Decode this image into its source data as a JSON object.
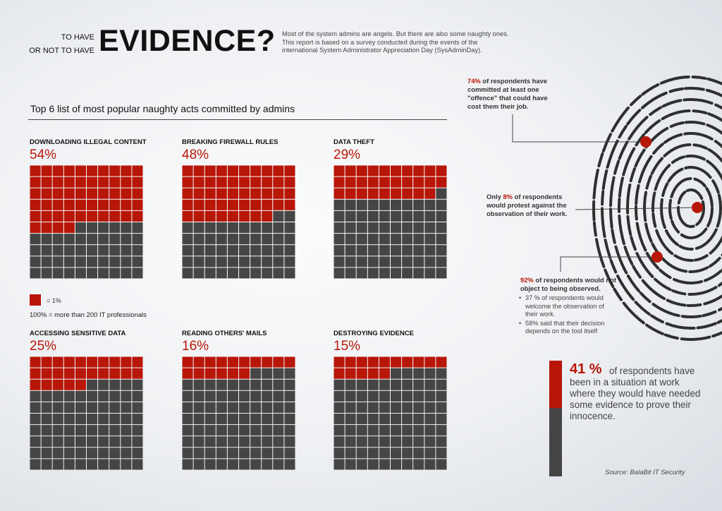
{
  "header": {
    "pre_title_line1": "TO HAVE",
    "pre_title_line2": "OR NOT TO HAVE",
    "title": "EVIDENCE?",
    "intro": "Most of the system admins are angels. But there are also some naughty ones. This report is based on a survey conducted during the events of the international System Administrator Appreciation Day (SysAdminDay)."
  },
  "colors": {
    "accent": "#b81608",
    "grey": "#454545"
  },
  "legend": {
    "unit_label": "= 1%",
    "note": "100% = more than 200 IT professionals"
  },
  "chart_data": {
    "type": "bar",
    "subtype": "waffle",
    "title": "Top 6 list of most popular naughty acts committed by admins",
    "units_per_chart": 100,
    "categories": [
      "DOWNLOADING ILLEGAL CONTENT",
      "BREAKING FIREWALL RULES",
      "DATA THEFT",
      "ACCESSING SENSITIVE DATA",
      "READING OTHERS' MAILS",
      "DESTROYING EVIDENCE"
    ],
    "values": [
      54,
      48,
      29,
      25,
      16,
      15
    ],
    "value_labels": [
      "54%",
      "48%",
      "29%",
      "25%",
      "16%",
      "15%"
    ]
  },
  "callouts": [
    {
      "highlight": "74%",
      "text": " of respondents have committed at least one \"offence\" that could have cost them their job."
    },
    {
      "prefix": "Only ",
      "highlight": "8%",
      "text": " of respondents would protest against the observation of their work."
    },
    {
      "highlight": "92%",
      "text": " of respondents would not object to being observed.",
      "bullets": [
        "37 % of respondents would welcome the observation of their work.",
        "58% said that their decision depends on the tool itself"
      ]
    }
  ],
  "stat": {
    "value": 41,
    "value_label": "41 %",
    "text": "of respondents have been in a situation at work where they would have needed some evidence to prove their innocence."
  },
  "source": "Source: BalaBit IT Security"
}
